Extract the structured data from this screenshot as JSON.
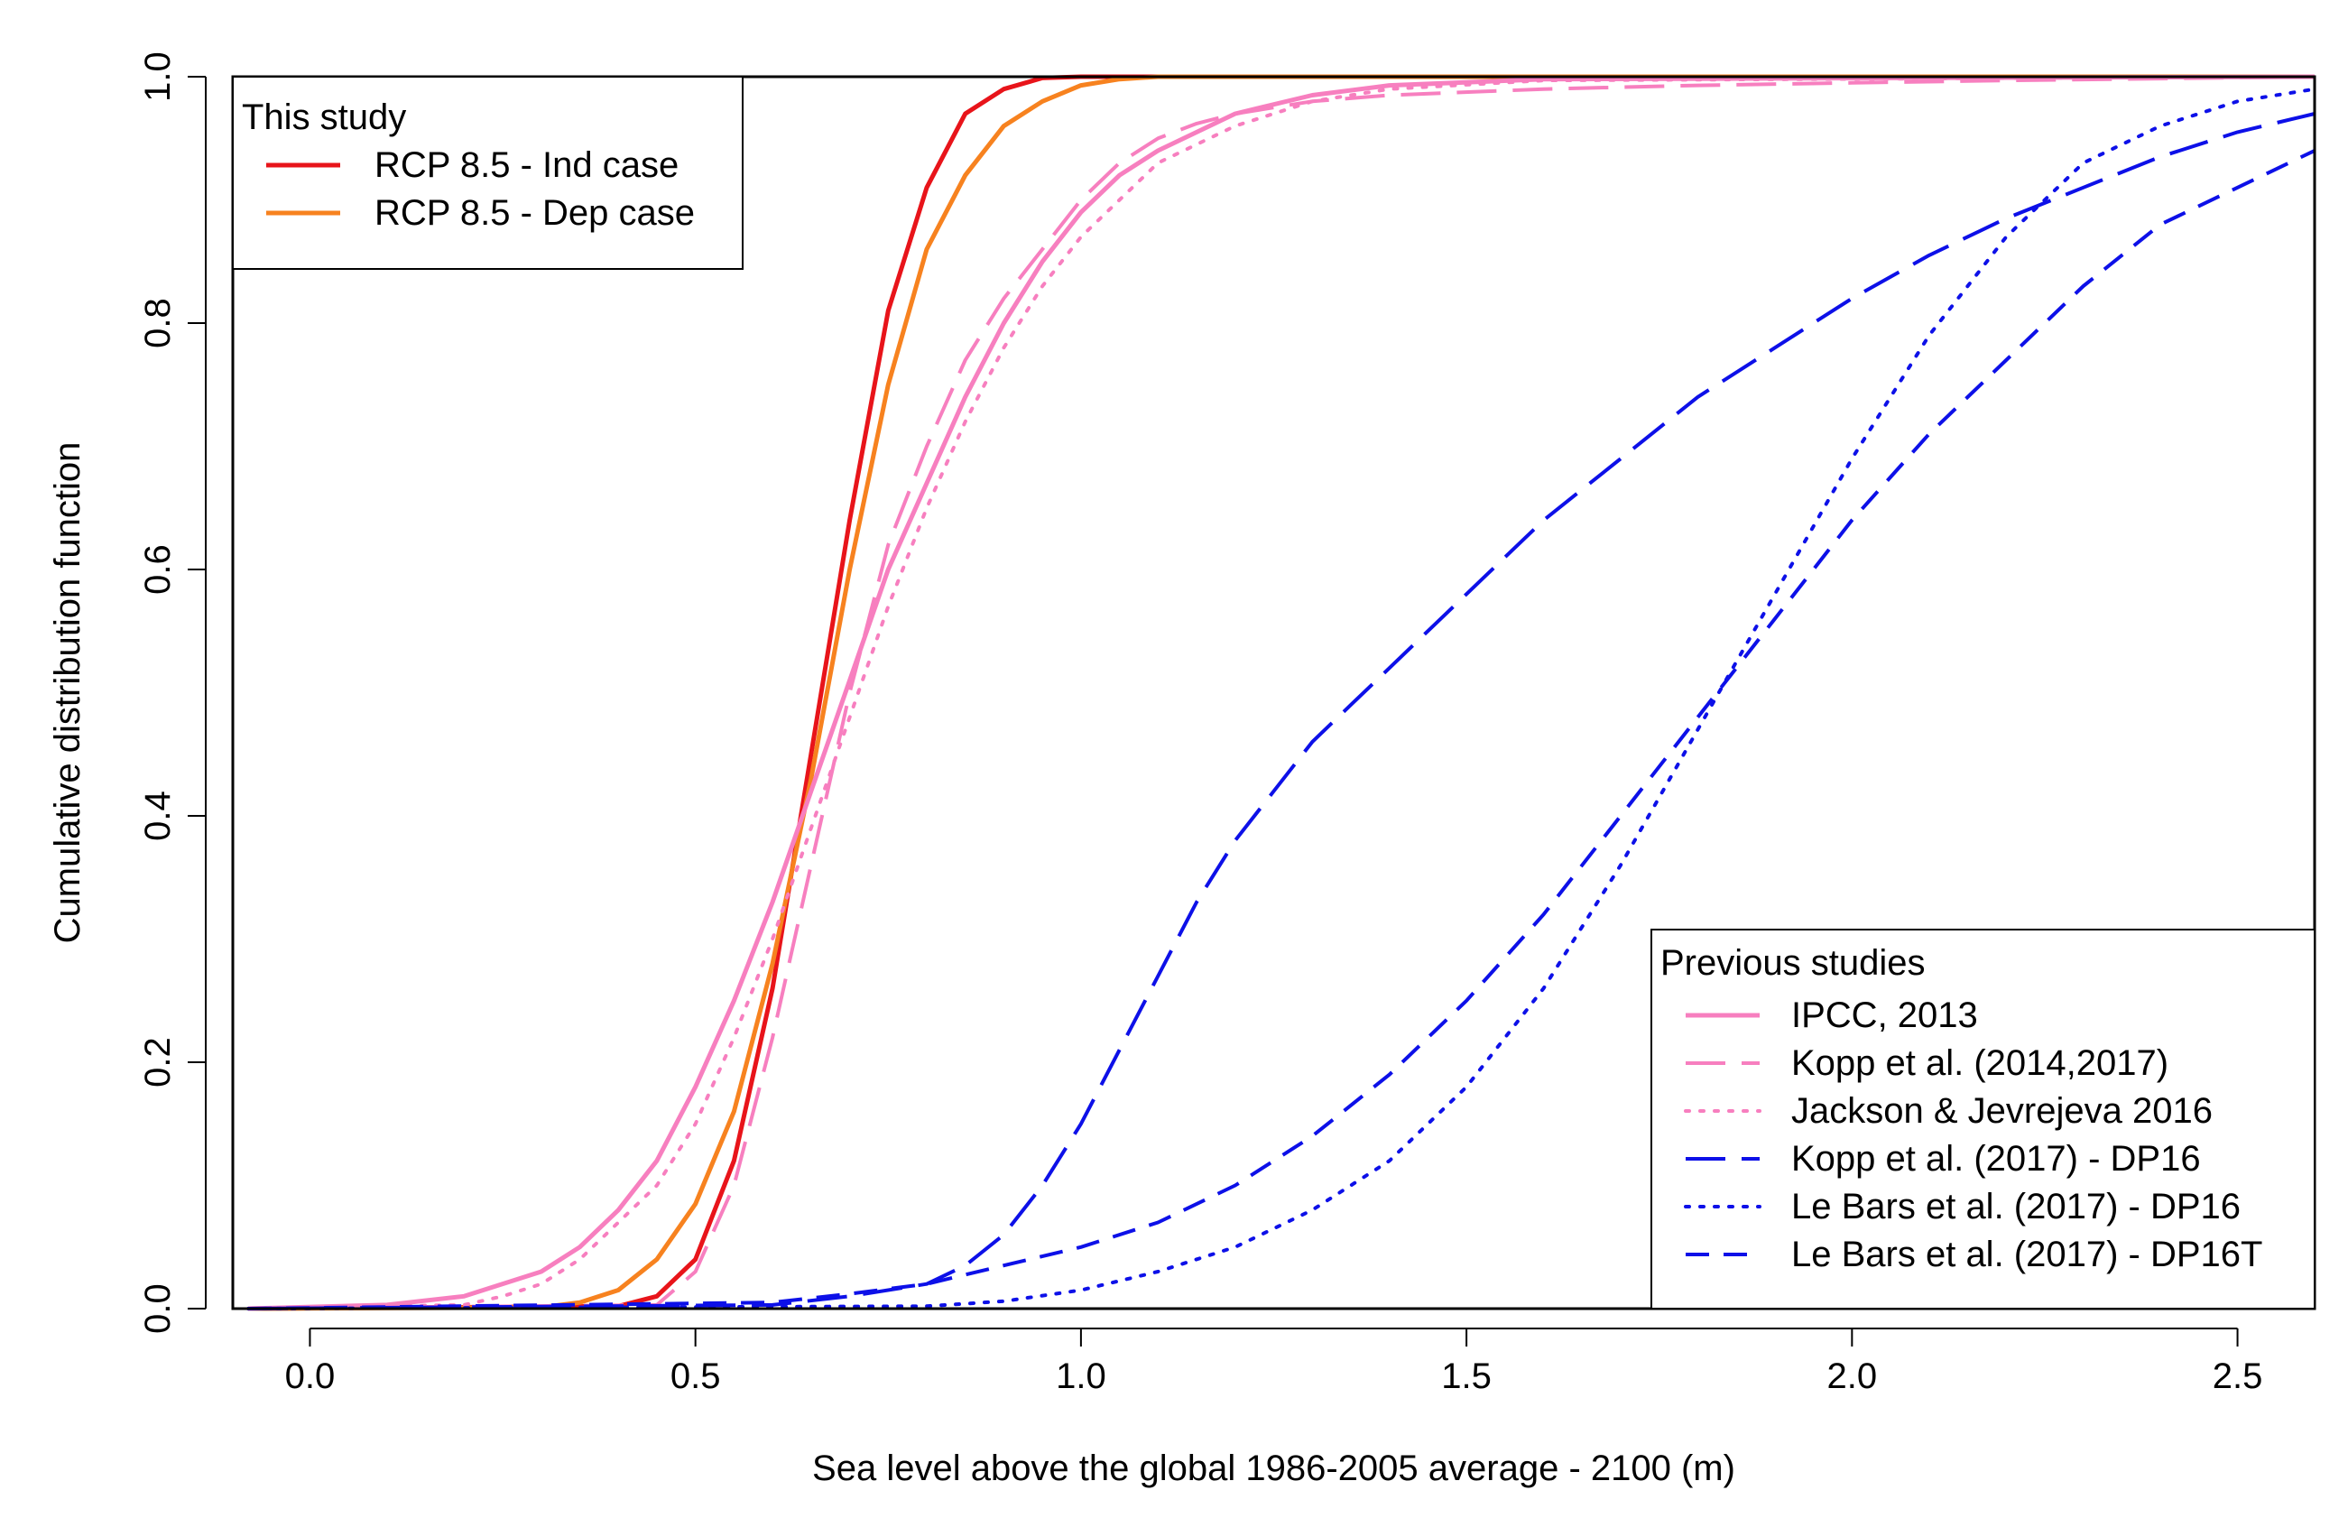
{
  "chart_data": {
    "type": "line",
    "title": "",
    "xlabel": "Sea level above the global 1986-2005 average - 2100 (m)",
    "ylabel": "Cumulative distribution function",
    "xlim": [
      -0.1,
      2.6
    ],
    "ylim": [
      0.0,
      1.0
    ],
    "x_ticks": [
      "0.0",
      "0.5",
      "1.0",
      "1.5",
      "2.0",
      "2.5"
    ],
    "y_ticks": [
      "0.0",
      "0.2",
      "0.4",
      "0.6",
      "0.8",
      "1.0"
    ],
    "grid": false,
    "legends": [
      {
        "title": "This study",
        "position": "top-left",
        "entries": [
          "RCP 8.5 - Ind case",
          "RCP 8.5 - Dep case"
        ]
      },
      {
        "title": "Previous studies",
        "position": "bottom-right",
        "entries": [
          "IPCC, 2013",
          "Kopp et al. (2014,2017)",
          "Jackson & Jevrejeva 2016",
          "Kopp et al. (2017) - DP16",
          "Le Bars et al. (2017) - DP16",
          "Le Bars et al. (2017) - DP16T"
        ]
      }
    ],
    "series": [
      {
        "name": "RCP 8.5 - Ind case",
        "color": "#e8141a",
        "dash": "solid",
        "legend": "This study",
        "x": [
          -0.08,
          0.4,
          0.45,
          0.5,
          0.55,
          0.6,
          0.65,
          0.7,
          0.75,
          0.8,
          0.85,
          0.9,
          0.95,
          1.0,
          2.6
        ],
        "y": [
          0.0,
          0.002,
          0.01,
          0.04,
          0.12,
          0.26,
          0.45,
          0.64,
          0.81,
          0.91,
          0.97,
          0.99,
          0.999,
          1.0,
          1.0
        ]
      },
      {
        "name": "RCP 8.5 - Dep case",
        "color": "#f7821f",
        "dash": "solid",
        "legend": "This study",
        "x": [
          -0.08,
          0.3,
          0.35,
          0.4,
          0.45,
          0.5,
          0.55,
          0.6,
          0.65,
          0.7,
          0.75,
          0.8,
          0.85,
          0.9,
          0.95,
          1.0,
          1.05,
          1.1,
          2.6
        ],
        "y": [
          0.0,
          0.001,
          0.005,
          0.015,
          0.04,
          0.085,
          0.16,
          0.28,
          0.43,
          0.6,
          0.75,
          0.86,
          0.92,
          0.96,
          0.98,
          0.993,
          0.998,
          1.0,
          1.0
        ]
      },
      {
        "name": "IPCC, 2013",
        "color": "#f77fbf",
        "dash": "solid",
        "legend": "Previous studies",
        "x": [
          -0.08,
          0.1,
          0.2,
          0.3,
          0.35,
          0.4,
          0.45,
          0.5,
          0.55,
          0.6,
          0.65,
          0.7,
          0.75,
          0.8,
          0.85,
          0.9,
          0.95,
          1.0,
          1.05,
          1.1,
          1.2,
          1.3,
          1.4,
          1.6,
          2.6
        ],
        "y": [
          0.0,
          0.003,
          0.01,
          0.03,
          0.05,
          0.08,
          0.12,
          0.18,
          0.25,
          0.33,
          0.42,
          0.51,
          0.6,
          0.67,
          0.74,
          0.8,
          0.85,
          0.89,
          0.92,
          0.94,
          0.97,
          0.985,
          0.993,
          0.998,
          1.0
        ]
      },
      {
        "name": "Kopp et al. (2014,2017)",
        "color": "#f77fbf",
        "dash": "longdash",
        "legend": "Previous studies",
        "x": [
          -0.08,
          0.45,
          0.5,
          0.55,
          0.6,
          0.65,
          0.7,
          0.75,
          0.8,
          0.85,
          0.9,
          0.95,
          1.0,
          1.05,
          1.1,
          1.15,
          1.2,
          1.3,
          1.4,
          1.6,
          1.8,
          2.0,
          2.2,
          2.6
        ],
        "y": [
          0.0,
          0.003,
          0.03,
          0.1,
          0.22,
          0.36,
          0.5,
          0.62,
          0.7,
          0.77,
          0.82,
          0.86,
          0.9,
          0.93,
          0.95,
          0.962,
          0.97,
          0.98,
          0.985,
          0.99,
          0.993,
          0.995,
          0.997,
          1.0
        ]
      },
      {
        "name": "Jackson & Jevrejeva 2016",
        "color": "#f77fbf",
        "dash": "dotted",
        "legend": "Previous studies",
        "x": [
          -0.08,
          0.2,
          0.25,
          0.3,
          0.35,
          0.4,
          0.45,
          0.5,
          0.55,
          0.6,
          0.65,
          0.7,
          0.75,
          0.8,
          0.85,
          0.9,
          0.95,
          1.0,
          1.05,
          1.1,
          1.2,
          1.3,
          1.4,
          1.6,
          2.6
        ],
        "y": [
          0.0,
          0.003,
          0.01,
          0.02,
          0.04,
          0.07,
          0.1,
          0.15,
          0.22,
          0.3,
          0.39,
          0.48,
          0.57,
          0.65,
          0.72,
          0.78,
          0.83,
          0.87,
          0.9,
          0.93,
          0.96,
          0.98,
          0.99,
          0.997,
          1.0
        ]
      },
      {
        "name": "Kopp et al. (2017) - DP16",
        "color": "#0d10e8",
        "dash": "longdash",
        "legend": "Previous studies",
        "x": [
          -0.08,
          0.6,
          0.7,
          0.8,
          0.85,
          0.9,
          0.95,
          1.0,
          1.05,
          1.1,
          1.15,
          1.2,
          1.25,
          1.3,
          1.35,
          1.4,
          1.45,
          1.5,
          1.6,
          1.7,
          1.8,
          1.9,
          2.0,
          2.1,
          2.2,
          2.3,
          2.4,
          2.5,
          2.6
        ],
        "y": [
          0.0,
          0.003,
          0.01,
          0.02,
          0.035,
          0.06,
          0.1,
          0.15,
          0.21,
          0.27,
          0.33,
          0.38,
          0.42,
          0.46,
          0.49,
          0.52,
          0.55,
          0.58,
          0.64,
          0.69,
          0.74,
          0.78,
          0.82,
          0.855,
          0.885,
          0.91,
          0.935,
          0.955,
          0.97
        ]
      },
      {
        "name": "Le Bars et al. (2017) - DP16",
        "color": "#0d10e8",
        "dash": "dotted",
        "legend": "Previous studies",
        "x": [
          -0.08,
          0.8,
          0.9,
          1.0,
          1.1,
          1.2,
          1.3,
          1.4,
          1.5,
          1.6,
          1.7,
          1.8,
          1.9,
          2.0,
          2.1,
          2.2,
          2.3,
          2.4,
          2.5,
          2.6
        ],
        "y": [
          0.0,
          0.002,
          0.006,
          0.015,
          0.03,
          0.05,
          0.08,
          0.12,
          0.18,
          0.26,
          0.36,
          0.47,
          0.58,
          0.69,
          0.79,
          0.87,
          0.93,
          0.96,
          0.98,
          0.99
        ]
      },
      {
        "name": "Le Bars et al. (2017) - DP16T",
        "color": "#0d10e8",
        "dash": "dashed",
        "legend": "Previous studies",
        "x": [
          -0.08,
          0.6,
          0.7,
          0.8,
          0.9,
          1.0,
          1.1,
          1.2,
          1.3,
          1.4,
          1.5,
          1.6,
          1.7,
          1.8,
          1.9,
          2.0,
          2.1,
          2.2,
          2.3,
          2.4,
          2.5,
          2.6
        ],
        "y": [
          0.0,
          0.005,
          0.012,
          0.02,
          0.035,
          0.05,
          0.07,
          0.1,
          0.14,
          0.19,
          0.25,
          0.32,
          0.4,
          0.48,
          0.56,
          0.64,
          0.71,
          0.77,
          0.83,
          0.88,
          0.91,
          0.94
        ]
      }
    ]
  }
}
